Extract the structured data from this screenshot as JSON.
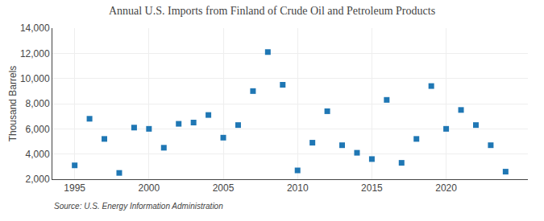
{
  "chart_data": {
    "type": "scatter",
    "title": "Annual U.S. Imports from Finland of Crude Oil and Petroleum Products",
    "y_label": "Thousand Barrels",
    "annotations": [
      "Source: U.S. Energy Information Administration"
    ],
    "marker": "square",
    "x": [
      1995,
      1996,
      1997,
      1998,
      1999,
      2000,
      2001,
      2002,
      2003,
      2004,
      2005,
      2006,
      2007,
      2008,
      2009,
      2010,
      2011,
      2012,
      2013,
      2014,
      2015,
      2016,
      2017,
      2018,
      2019,
      2020,
      2021,
      2022,
      2023,
      2024
    ],
    "values": [
      3100,
      6800,
      5200,
      2500,
      6100,
      6000,
      4500,
      6400,
      6500,
      7100,
      5300,
      6300,
      9000,
      12100,
      9500,
      2700,
      4900,
      7400,
      4700,
      4100,
      3600,
      8300,
      3300,
      5200,
      9400,
      6000,
      7500,
      6300,
      4700,
      2600
    ],
    "xlim": [
      1993.5,
      2025.5
    ],
    "xticks": [
      1995,
      2000,
      2005,
      2010,
      2015,
      2020
    ],
    "ylim": [
      2000,
      14000
    ],
    "yticks": [
      {
        "value": 2000,
        "label": "2,000"
      },
      {
        "value": 4000,
        "label": "4,000"
      },
      {
        "value": 6000,
        "label": "6,000"
      },
      {
        "value": 8000,
        "label": "8,000"
      },
      {
        "value": 10000,
        "label": "10,000"
      },
      {
        "value": 12000,
        "label": "12,000"
      },
      {
        "value": 14000,
        "label": "14,000"
      }
    ],
    "grid": true
  }
}
